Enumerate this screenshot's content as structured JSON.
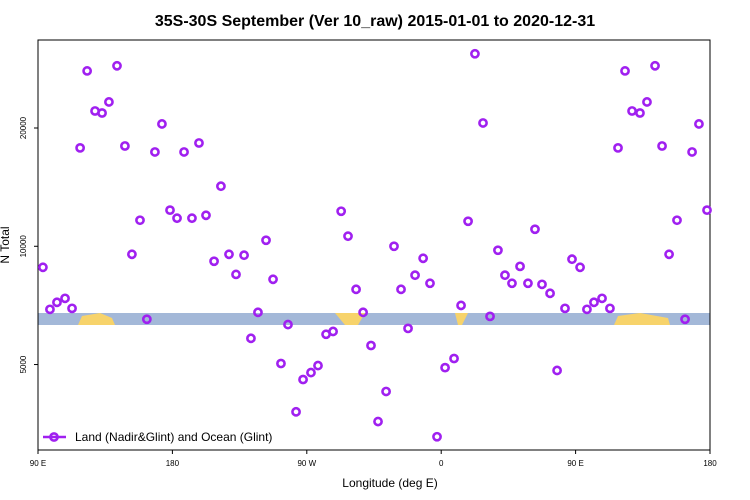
{
  "chart_data": {
    "type": "scatter",
    "title": "35S-30S September (Ver 10_raw)   2015-01-01 to 2020-12-31",
    "x_label": "Longitude (deg E)",
    "y_label": "N Total",
    "log_y": true,
    "legend_position": "bottom-left",
    "xlim": [
      90,
      540
    ],
    "xticks": [
      {
        "value": 90,
        "label": "90 E"
      },
      {
        "value": 180,
        "label": "180"
      },
      {
        "value": 270,
        "label": "90 W"
      },
      {
        "value": 360,
        "label": "0"
      },
      {
        "value": 450,
        "label": "90 E"
      },
      {
        "value": 540,
        "label": "180"
      }
    ],
    "ylim": [
      3030,
      33500
    ],
    "yticks": [
      5000,
      10000,
      20000
    ],
    "x": [
      93.3,
      98,
      102.7,
      108.1,
      112.8,
      118.2,
      122.9,
      128.2,
      132.9,
      137.5,
      142.9,
      148.2,
      152.9,
      158.3,
      162.9,
      168.3,
      173,
      178.4,
      183.1,
      187.8,
      193.1,
      197.8,
      202.5,
      207.9,
      212.5,
      217.9,
      222.6,
      228,
      232.6,
      237.3,
      242.7,
      247.4,
      252.7,
      257.4,
      262.8,
      267.5,
      272.8,
      277.5,
      282.9,
      287.6,
      293,
      297.6,
      303,
      307.7,
      313,
      317.7,
      323.1,
      328.4,
      333.1,
      337.8,
      342.5,
      347.9,
      352.5,
      357.2,
      362.6,
      368.6,
      373.3,
      378,
      382.6,
      388,
      392.7,
      398,
      402.7,
      407.4,
      412.8,
      418.1,
      422.8,
      427.5,
      432.9,
      437.6,
      442.9,
      447.6,
      453,
      457.6,
      462.3,
      467.7,
      473,
      478.4,
      483.1,
      487.8,
      493.1,
      497.8,
      503.2,
      507.9,
      512.6,
      517.9,
      523.3,
      528,
      532.6,
      538
    ],
    "series": [
      {
        "name": "Land (Nadir&Glint) and Ocean (Glint)",
        "color": "#a020f0",
        "values": [
          8840,
          6910,
          7200,
          7370,
          6950,
          17800,
          27950,
          22100,
          21840,
          23300,
          28800,
          18000,
          9540,
          11650,
          6520,
          17380,
          20480,
          12360,
          11790,
          17380,
          11790,
          18320,
          11990,
          9160,
          14220,
          9540,
          8480,
          9490,
          5830,
          6790,
          10360,
          8240,
          5030,
          6320,
          3790,
          4580,
          4770,
          4970,
          5970,
          6070,
          12280,
          10610,
          7770,
          6790,
          5590,
          3580,
          4270,
          10000,
          7770,
          6180,
          8440,
          9320,
          8050,
          3275,
          4910,
          5180,
          7070,
          11580,
          30900,
          20600,
          6630,
          9770,
          8440,
          8050,
          8890,
          8050,
          11050,
          8000,
          7590,
          4830,
          6950,
          9270,
          8840,
          6910,
          7200,
          7370,
          6950,
          17800,
          27950,
          22100,
          21840,
          23300,
          28800,
          18000,
          9540,
          11650,
          6520,
          17380,
          20480,
          12360
        ]
      }
    ]
  }
}
